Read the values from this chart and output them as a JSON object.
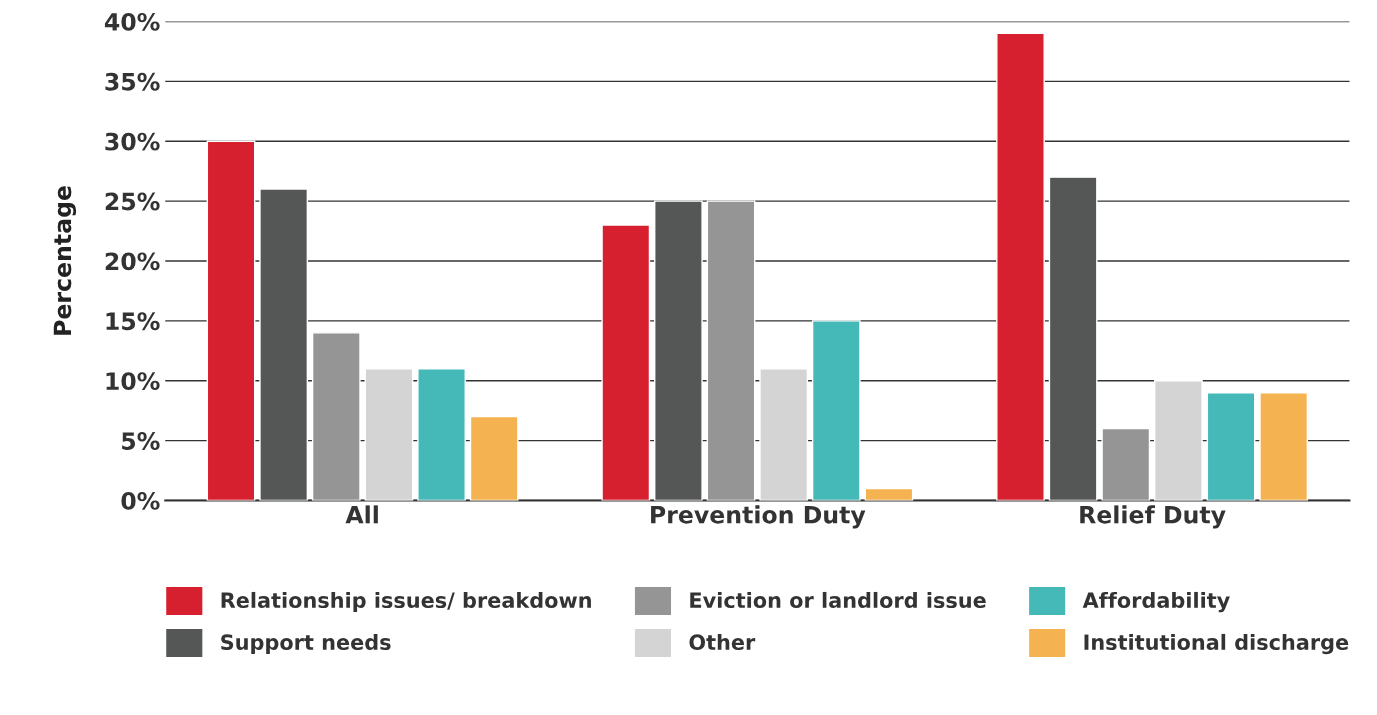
{
  "chart_data": {
    "type": "bar",
    "ylabel": "Percentage",
    "categories": [
      "All",
      "Prevention Duty",
      "Relief Duty"
    ],
    "series": [
      {
        "name": "Relationship issues/ breakdown",
        "color": "#d6202f",
        "values": [
          30,
          23,
          39
        ]
      },
      {
        "name": "Support needs",
        "color": "#555756",
        "values": [
          26,
          25,
          27
        ]
      },
      {
        "name": "Eviction or landlord issue",
        "color": "#959595",
        "values": [
          14,
          25,
          6
        ]
      },
      {
        "name": "Other",
        "color": "#d3d4d3",
        "values": [
          11,
          11,
          10
        ]
      },
      {
        "name": "Affordability",
        "color": "#45b8b8",
        "values": [
          11,
          15,
          9
        ]
      },
      {
        "name": "Institutional discharge",
        "color": "#f4b350",
        "values": [
          7,
          1,
          9
        ]
      }
    ],
    "ylim": [
      0,
      40
    ],
    "yticks": [
      {
        "value": 0,
        "label": "0%"
      },
      {
        "value": 5,
        "label": "5%"
      },
      {
        "value": 10,
        "label": "10%"
      },
      {
        "value": 15,
        "label": "15%"
      },
      {
        "value": 20,
        "label": "20%"
      },
      {
        "value": 25,
        "label": "25%"
      },
      {
        "value": 30,
        "label": "30%"
      },
      {
        "value": 35,
        "label": "35%"
      },
      {
        "value": 40,
        "label": "40%"
      }
    ],
    "grid": "y",
    "legend": "bottom"
  }
}
